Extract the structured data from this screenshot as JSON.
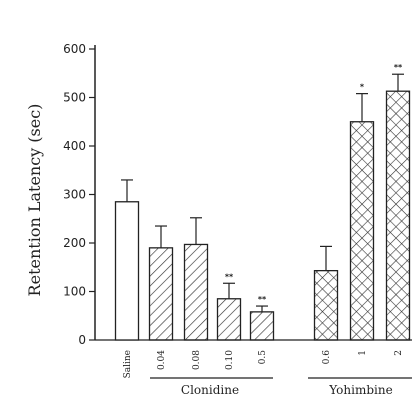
{
  "chart_data": {
    "type": "bar",
    "ylabel": "Retention Latency (sec)",
    "ylim": [
      0,
      600
    ],
    "yticks": [
      0,
      100,
      200,
      300,
      400,
      500,
      600
    ],
    "categories": [
      "Saline",
      "0.04",
      "0.08",
      "0.10",
      "0.5",
      "0.6",
      "1",
      "2"
    ],
    "values": [
      285,
      190,
      197,
      85,
      58,
      143,
      450,
      513
    ],
    "errors": [
      45,
      45,
      55,
      32,
      12,
      50,
      58,
      35
    ],
    "significance": [
      "",
      "",
      "",
      "**",
      "**",
      "",
      "*",
      "**"
    ],
    "patterns": [
      "open",
      "hatched",
      "hatched",
      "hatched",
      "hatched",
      "crosshatched",
      "crosshatched",
      "crosshatched"
    ],
    "groups": [
      {
        "label": "Clonidine",
        "categories": [
          "0.04",
          "0.08",
          "0.10",
          "0.5"
        ]
      },
      {
        "label": "Yohimbine",
        "categories": [
          "0.6",
          "1",
          "2"
        ]
      }
    ],
    "grid": false,
    "legend": "none"
  }
}
